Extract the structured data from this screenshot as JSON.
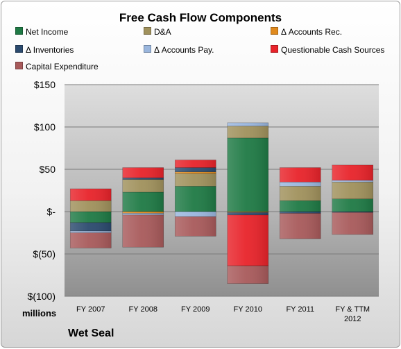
{
  "chart_data": {
    "type": "bar",
    "stacked": true,
    "title": "Free Cash Flow Components",
    "units_label": "millions",
    "company": "Wet Seal",
    "categories": [
      "FY 2007",
      "FY 2008",
      "FY 2009",
      "FY 2010",
      "FY 2011",
      "FY & TTM 2012"
    ],
    "ylim": [
      -100,
      150
    ],
    "yticks": [
      150,
      100,
      50,
      0,
      -50,
      -100
    ],
    "ytick_labels": [
      "$150",
      "$100",
      "$50",
      "$-",
      "$(50)",
      "$(100)"
    ],
    "grid": true,
    "legend_position": "top",
    "series": [
      {
        "name": "Net Income",
        "color": "#1f7a45",
        "values": [
          -13,
          23,
          30,
          87,
          13,
          15
        ]
      },
      {
        "name": "D&A",
        "color": "#a0915c",
        "values": [
          13,
          15,
          15,
          14,
          17,
          20
        ]
      },
      {
        "name": "Δ Accounts Rec.",
        "color": "#e08a1e",
        "values": [
          0,
          -2,
          2,
          -1,
          0,
          0
        ]
      },
      {
        "name": "Δ Inventories",
        "color": "#2b4a6e",
        "values": [
          -10,
          2,
          5,
          -3,
          -2,
          -1
        ]
      },
      {
        "name": "Δ Accounts Pay.",
        "color": "#9ab6dd",
        "values": [
          -2,
          -2,
          -6,
          4,
          5,
          2
        ]
      },
      {
        "name": "Questionable Cash Sources",
        "color": "#e8232a",
        "values": [
          14,
          12,
          9,
          -60,
          17,
          18
        ]
      },
      {
        "name": "Capital Expenditure",
        "color": "#a85a5b",
        "values": [
          -18,
          -38,
          -23,
          -21,
          -30,
          -26
        ]
      }
    ]
  }
}
